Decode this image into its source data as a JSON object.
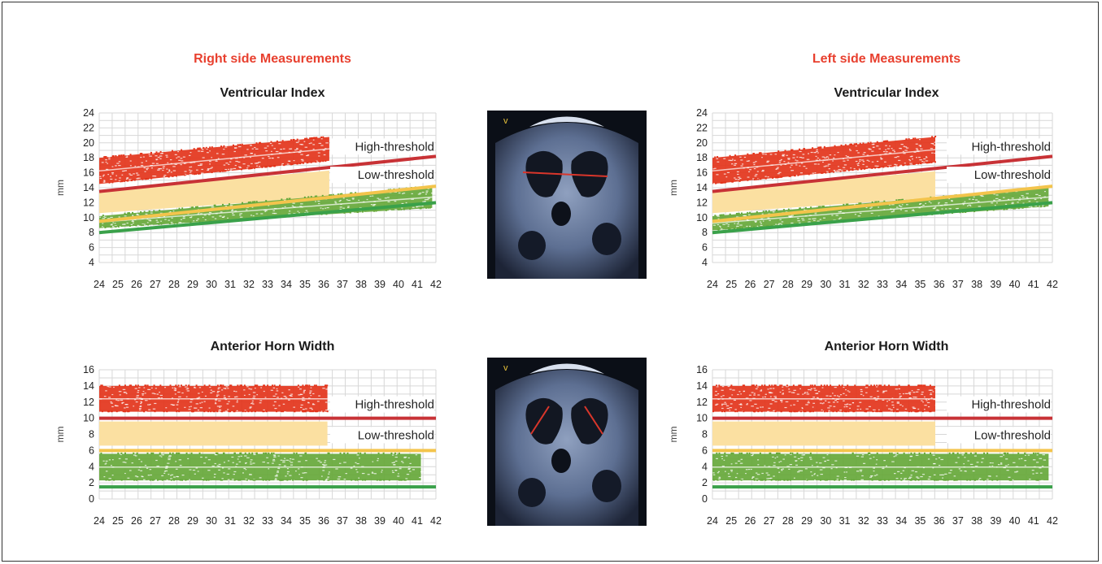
{
  "sides": {
    "right": "Right side Measurements",
    "left": "Left side Measurements"
  },
  "ultrasound": {
    "top_marker": "v",
    "bottom_marker": "v"
  },
  "colors": {
    "high_line": "#c83236",
    "low_line": "#f3c44c",
    "normal_line": "#3aa14a",
    "red_band": "#e3341b",
    "yellow_band": "#fbe0a1",
    "green_band": "#66a83a",
    "grid": "#d7d7d7"
  },
  "chart_data": [
    {
      "id": "vi-right",
      "type": "area",
      "title": "Ventricular Index",
      "ylabel": "mm",
      "xlabel": "",
      "categories": [
        "24",
        "25",
        "26",
        "27",
        "28",
        "29",
        "30",
        "31",
        "32",
        "33",
        "34",
        "35",
        "36",
        "37",
        "38",
        "39",
        "40",
        "41",
        "42"
      ],
      "xlim": [
        24,
        42
      ],
      "ylim": [
        4,
        24
      ],
      "yticks": [
        4,
        6,
        8,
        10,
        12,
        14,
        16,
        18,
        20,
        22,
        24
      ],
      "grid": true,
      "series": [
        {
          "name": "High-threshold",
          "values": [
            [
              24,
              13.5
            ],
            [
              42,
              18.2
            ]
          ]
        },
        {
          "name": "Low-threshold",
          "values": [
            [
              24,
              9.5
            ],
            [
              42,
              14.2
            ]
          ]
        },
        {
          "values": [
            [
              24,
              8
            ],
            [
              42,
              12
            ]
          ]
        }
      ],
      "bands": [
        {
          "color": "red",
          "x": [
            24,
            36.3
          ],
          "lower": [
            14.5,
            17.6
          ],
          "upper": [
            18,
            20.8
          ]
        },
        {
          "color": "yellow",
          "x": [
            24,
            36.3
          ],
          "lower": [
            10.6,
            12.8
          ],
          "upper": [
            13.6,
            16.3
          ]
        },
        {
          "color": "green",
          "x": [
            24,
            41.8
          ],
          "lower": [
            8.6,
            11.3
          ],
          "upper": [
            10.2,
            14.2
          ]
        }
      ]
    },
    {
      "id": "vi-left",
      "type": "area",
      "title": "Ventricular Index",
      "ylabel": "mm",
      "xlabel": "",
      "categories": [
        "24",
        "25",
        "26",
        "27",
        "28",
        "29",
        "30",
        "31",
        "32",
        "33",
        "34",
        "35",
        "36",
        "37",
        "38",
        "39",
        "40",
        "41",
        "42"
      ],
      "xlim": [
        24,
        42
      ],
      "ylim": [
        4,
        24
      ],
      "yticks": [
        4,
        6,
        8,
        10,
        12,
        14,
        16,
        18,
        20,
        22,
        24
      ],
      "grid": true,
      "series": [
        {
          "name": "High-threshold",
          "values": [
            [
              24,
              13.5
            ],
            [
              42,
              18.2
            ]
          ]
        },
        {
          "name": "Low-threshold",
          "values": [
            [
              24,
              9.5
            ],
            [
              42,
              14.2
            ]
          ]
        },
        {
          "values": [
            [
              24,
              8
            ],
            [
              42,
              12
            ]
          ]
        }
      ],
      "bands": [
        {
          "color": "red",
          "x": [
            24,
            35.8
          ],
          "lower": [
            14.5,
            17.4
          ],
          "upper": [
            18,
            20.8
          ]
        },
        {
          "color": "yellow",
          "x": [
            24,
            35.8
          ],
          "lower": [
            10.6,
            12.7
          ],
          "upper": [
            13.6,
            16.2
          ]
        },
        {
          "color": "green",
          "x": [
            24,
            41.8
          ],
          "lower": [
            8.3,
            11.5
          ],
          "upper": [
            10.2,
            14
          ]
        }
      ]
    },
    {
      "id": "ahw-right",
      "type": "area",
      "title": "Anterior Horn Width",
      "ylabel": "mm",
      "xlabel": "",
      "categories": [
        "24",
        "25",
        "26",
        "27",
        "28",
        "29",
        "30",
        "31",
        "32",
        "33",
        "34",
        "35",
        "36",
        "37",
        "38",
        "39",
        "40",
        "41",
        "42"
      ],
      "xlim": [
        24,
        42
      ],
      "ylim": [
        0,
        16
      ],
      "yticks": [
        0,
        2,
        4,
        6,
        8,
        10,
        12,
        14,
        16
      ],
      "grid": true,
      "series": [
        {
          "name": "High-threshold",
          "values": [
            [
              24,
              10
            ],
            [
              42,
              10
            ]
          ]
        },
        {
          "name": "Low-threshold",
          "values": [
            [
              24,
              6
            ],
            [
              42,
              6
            ]
          ]
        },
        {
          "values": [
            [
              24,
              1.5
            ],
            [
              42,
              1.5
            ]
          ]
        }
      ],
      "bands": [
        {
          "color": "red",
          "x": [
            24,
            36.2
          ],
          "lower": [
            10.8,
            10.8
          ],
          "upper": [
            14,
            14
          ]
        },
        {
          "color": "yellow",
          "x": [
            24,
            36.2
          ],
          "lower": [
            6.6,
            6.6
          ],
          "upper": [
            9.6,
            9.6
          ]
        },
        {
          "color": "green",
          "x": [
            24,
            41.2
          ],
          "lower": [
            2.3,
            2.3
          ],
          "upper": [
            5.6,
            5.6
          ]
        }
      ]
    },
    {
      "id": "ahw-left",
      "type": "area",
      "title": "Anterior Horn Width",
      "ylabel": "mm",
      "xlabel": "",
      "categories": [
        "24",
        "25",
        "26",
        "27",
        "28",
        "29",
        "30",
        "31",
        "32",
        "33",
        "34",
        "35",
        "36",
        "37",
        "38",
        "39",
        "40",
        "41",
        "42"
      ],
      "xlim": [
        24,
        42
      ],
      "ylim": [
        0,
        16
      ],
      "yticks": [
        0,
        2,
        4,
        6,
        8,
        10,
        12,
        14,
        16
      ],
      "grid": true,
      "series": [
        {
          "name": "High-threshold",
          "values": [
            [
              24,
              10
            ],
            [
              42,
              10
            ]
          ]
        },
        {
          "name": "Low-threshold",
          "values": [
            [
              24,
              6
            ],
            [
              42,
              6
            ]
          ]
        },
        {
          "values": [
            [
              24,
              1.5
            ],
            [
              42,
              1.5
            ]
          ]
        }
      ],
      "bands": [
        {
          "color": "red",
          "x": [
            24,
            35.8
          ],
          "lower": [
            10.8,
            10.8
          ],
          "upper": [
            14,
            14
          ]
        },
        {
          "color": "yellow",
          "x": [
            24,
            35.8
          ],
          "lower": [
            6.6,
            6.6
          ],
          "upper": [
            9.6,
            9.6
          ]
        },
        {
          "color": "green",
          "x": [
            24,
            41.8
          ],
          "lower": [
            2.3,
            2.3
          ],
          "upper": [
            5.6,
            5.6
          ]
        }
      ]
    }
  ]
}
